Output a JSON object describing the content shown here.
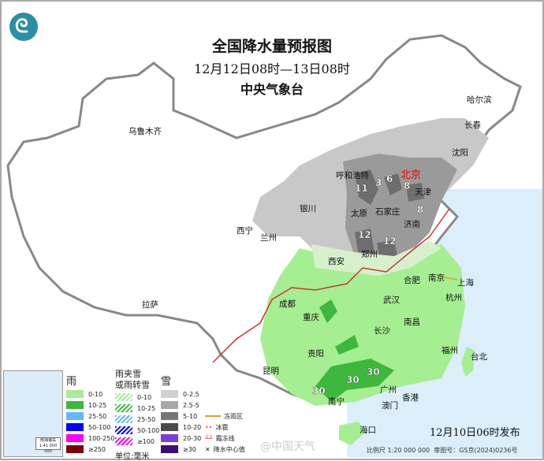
{
  "header": {
    "title": "全国降水量预报图",
    "period": "12月12日08时—13日08时",
    "issuer": "中央气象台"
  },
  "logo_icon": "cma-dragon-logo",
  "cities": [
    "乌鲁木齐",
    "哈尔滨",
    "长春",
    "沈阳",
    "北京",
    "天津",
    "呼和浩特",
    "石家庄",
    "太原",
    "济南",
    "银川",
    "兰州",
    "西宁",
    "郑州",
    "西安",
    "合肥",
    "南京",
    "上海",
    "杭州",
    "成都",
    "武汉",
    "重庆",
    "南昌",
    "长沙",
    "拉萨",
    "贵阳",
    "福州",
    "台北",
    "昆明",
    "南宁",
    "广州",
    "香港",
    "澳门",
    "海口"
  ],
  "precip_centers": [
    "11",
    "3",
    "6",
    "8",
    "8",
    "12",
    "12",
    "30",
    "30",
    "30"
  ],
  "legend": {
    "rain": {
      "title": "雨",
      "items": [
        {
          "label": "0-10",
          "color": "#a6ee92"
        },
        {
          "label": "10-25",
          "color": "#3db83d"
        },
        {
          "label": "25-50",
          "color": "#62b8f8"
        },
        {
          "label": "50-100",
          "color": "#0000fe"
        },
        {
          "label": "100-250",
          "color": "#fa00fa"
        },
        {
          "label": "≥250",
          "color": "#810000"
        }
      ]
    },
    "sleet": {
      "title": "雨夹雪\n或雨转雪",
      "items": [
        {
          "label": "0-10",
          "color": "#a6ee92"
        },
        {
          "label": "10-25",
          "color": "#3db83d"
        },
        {
          "label": "25-50",
          "color": "#62b8f8"
        },
        {
          "label": "50-100",
          "color": "#0000fe"
        },
        {
          "label": "≥100",
          "color": "#fa00fa"
        }
      ]
    },
    "snow": {
      "title": "雪",
      "items": [
        {
          "label": "0-2.5",
          "color": "#d0d0d0"
        },
        {
          "label": "2.5-5",
          "color": "#a8a8a8"
        },
        {
          "label": "5-10",
          "color": "#767676"
        },
        {
          "label": "10-20",
          "color": "#4a4a4a"
        },
        {
          "label": "20-30",
          "color": "#7a3ee0"
        },
        {
          "label": "≥30",
          "color": "#3d0b7a"
        }
      ]
    },
    "unit": "单位:毫米",
    "symbols": {
      "freezing_rain": "冻雨区",
      "hail": "冰雹",
      "frost_line": "霜冻线",
      "center": "降水中心值"
    }
  },
  "inset_scale": "南海诸岛 1:41 000 000",
  "issue_time": "12月10日06时发布",
  "scale": "比例尺 1:20 000 000",
  "map_approval": "审图号：GS京(2024)0236号",
  "watermark": "@中国天气"
}
